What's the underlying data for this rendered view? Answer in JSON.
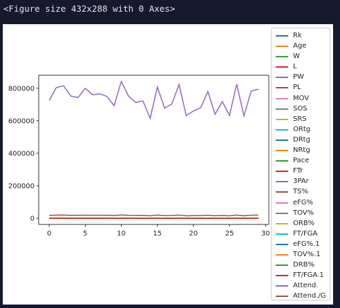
{
  "output": {
    "repr_text": "<Figure size 432x288 with 0 Axes>"
  },
  "colors": {
    "background": "#15192b",
    "canvas": "#ffffff"
  },
  "chart_data": {
    "type": "line",
    "title": "",
    "xlabel": "",
    "ylabel": "",
    "xlim": [
      -1.45,
      30.45
    ],
    "ylim": [
      -38000,
      880000
    ],
    "xticks": [
      0,
      5,
      10,
      15,
      20,
      25,
      30
    ],
    "yticks": [
      0,
      200000,
      400000,
      600000,
      800000
    ],
    "ytick_labels": [
      "0",
      "200000",
      "400000",
      "600000",
      "800000"
    ],
    "xtick_labels": [
      "0",
      "5",
      "10",
      "15",
      "20",
      "25",
      "30"
    ],
    "legend_position": "right-outside",
    "x": [
      0,
      1,
      2,
      3,
      4,
      5,
      6,
      7,
      8,
      9,
      10,
      11,
      12,
      13,
      14,
      15,
      16,
      17,
      18,
      19,
      20,
      21,
      22,
      23,
      24,
      25,
      26,
      27,
      28,
      29
    ],
    "series": [
      {
        "name": "Rk",
        "color": "#1f77b4",
        "values": [
          15,
          15,
          15,
          15,
          15,
          15,
          15,
          15,
          15,
          15,
          15,
          15,
          15,
          15,
          15,
          15,
          15,
          15,
          15,
          15,
          15,
          15,
          15,
          15,
          15,
          15,
          15,
          15,
          15,
          15
        ]
      },
      {
        "name": "Age",
        "color": "#ff7f0e",
        "values": [
          27,
          27,
          27,
          27,
          27,
          27,
          27,
          27,
          27,
          27,
          27,
          27,
          27,
          27,
          27,
          27,
          27,
          27,
          27,
          27,
          27,
          27,
          27,
          27,
          27,
          27,
          27,
          27,
          27,
          27
        ]
      },
      {
        "name": "W",
        "color": "#2ca02c",
        "values": [
          41,
          41,
          41,
          41,
          41,
          41,
          41,
          41,
          41,
          41,
          41,
          41,
          41,
          41,
          41,
          41,
          41,
          41,
          41,
          41,
          41,
          41,
          41,
          41,
          41,
          41,
          41,
          41,
          41,
          41
        ]
      },
      {
        "name": "L",
        "color": "#d62728",
        "values": [
          41,
          41,
          41,
          41,
          41,
          41,
          41,
          41,
          41,
          41,
          41,
          41,
          41,
          41,
          41,
          41,
          41,
          41,
          41,
          41,
          41,
          41,
          41,
          41,
          41,
          41,
          41,
          41,
          41,
          41
        ]
      },
      {
        "name": "PW",
        "color": "#9467bd",
        "values": [
          41,
          41,
          41,
          41,
          41,
          41,
          41,
          41,
          41,
          41,
          41,
          41,
          41,
          41,
          41,
          41,
          41,
          41,
          41,
          41,
          41,
          41,
          41,
          41,
          41,
          41,
          41,
          41,
          41,
          41
        ]
      },
      {
        "name": "PL",
        "color": "#8c564b",
        "values": [
          41,
          41,
          41,
          41,
          41,
          41,
          41,
          41,
          41,
          41,
          41,
          41,
          41,
          41,
          41,
          41,
          41,
          41,
          41,
          41,
          41,
          41,
          41,
          41,
          41,
          41,
          41,
          41,
          41,
          41
        ]
      },
      {
        "name": "MOV",
        "color": "#e377c2",
        "values": [
          0,
          0,
          0,
          0,
          0,
          0,
          0,
          0,
          0,
          0,
          0,
          0,
          0,
          0,
          0,
          0,
          0,
          0,
          0,
          0,
          0,
          0,
          0,
          0,
          0,
          0,
          0,
          0,
          0,
          0
        ]
      },
      {
        "name": "SOS",
        "color": "#7f7f7f",
        "values": [
          0,
          0,
          0,
          0,
          0,
          0,
          0,
          0,
          0,
          0,
          0,
          0,
          0,
          0,
          0,
          0,
          0,
          0,
          0,
          0,
          0,
          0,
          0,
          0,
          0,
          0,
          0,
          0,
          0,
          0
        ]
      },
      {
        "name": "SRS",
        "color": "#bcbd22",
        "values": [
          0,
          0,
          0,
          0,
          0,
          0,
          0,
          0,
          0,
          0,
          0,
          0,
          0,
          0,
          0,
          0,
          0,
          0,
          0,
          0,
          0,
          0,
          0,
          0,
          0,
          0,
          0,
          0,
          0,
          0
        ]
      },
      {
        "name": "ORtg",
        "color": "#17becf",
        "values": [
          110,
          110,
          110,
          110,
          110,
          110,
          110,
          110,
          110,
          110,
          110,
          110,
          110,
          110,
          110,
          110,
          110,
          110,
          110,
          110,
          110,
          110,
          110,
          110,
          110,
          110,
          110,
          110,
          110,
          110
        ]
      },
      {
        "name": "DRtg",
        "color": "#1f77b4",
        "values": [
          110,
          110,
          110,
          110,
          110,
          110,
          110,
          110,
          110,
          110,
          110,
          110,
          110,
          110,
          110,
          110,
          110,
          110,
          110,
          110,
          110,
          110,
          110,
          110,
          110,
          110,
          110,
          110,
          110,
          110
        ]
      },
      {
        "name": "NRtg",
        "color": "#ff7f0e",
        "values": [
          0,
          0,
          0,
          0,
          0,
          0,
          0,
          0,
          0,
          0,
          0,
          0,
          0,
          0,
          0,
          0,
          0,
          0,
          0,
          0,
          0,
          0,
          0,
          0,
          0,
          0,
          0,
          0,
          0,
          0
        ]
      },
      {
        "name": "Pace",
        "color": "#2ca02c",
        "values": [
          100,
          100,
          100,
          100,
          100,
          100,
          100,
          100,
          100,
          100,
          100,
          100,
          100,
          100,
          100,
          100,
          100,
          100,
          100,
          100,
          100,
          100,
          100,
          100,
          100,
          100,
          100,
          100,
          100,
          100
        ]
      },
      {
        "name": "FTr",
        "color": "#d62728",
        "values": [
          0,
          0,
          0,
          0,
          0,
          0,
          0,
          0,
          0,
          0,
          0,
          0,
          0,
          0,
          0,
          0,
          0,
          0,
          0,
          0,
          0,
          0,
          0,
          0,
          0,
          0,
          0,
          0,
          0,
          0
        ]
      },
      {
        "name": "3PAr",
        "color": "#9467bd",
        "values": [
          0,
          0,
          0,
          0,
          0,
          0,
          0,
          0,
          0,
          0,
          0,
          0,
          0,
          0,
          0,
          0,
          0,
          0,
          0,
          0,
          0,
          0,
          0,
          0,
          0,
          0,
          0,
          0,
          0,
          0
        ]
      },
      {
        "name": "TS%",
        "color": "#8c564b",
        "values": [
          1,
          1,
          1,
          1,
          1,
          1,
          1,
          1,
          1,
          1,
          1,
          1,
          1,
          1,
          1,
          1,
          1,
          1,
          1,
          1,
          1,
          1,
          1,
          1,
          1,
          1,
          1,
          1,
          1,
          1
        ]
      },
      {
        "name": "eFG%",
        "color": "#e377c2",
        "values": [
          1,
          1,
          1,
          1,
          1,
          1,
          1,
          1,
          1,
          1,
          1,
          1,
          1,
          1,
          1,
          1,
          1,
          1,
          1,
          1,
          1,
          1,
          1,
          1,
          1,
          1,
          1,
          1,
          1,
          1
        ]
      },
      {
        "name": "TOV%",
        "color": "#7f7f7f",
        "values": [
          13,
          13,
          13,
          13,
          13,
          13,
          13,
          13,
          13,
          13,
          13,
          13,
          13,
          13,
          13,
          13,
          13,
          13,
          13,
          13,
          13,
          13,
          13,
          13,
          13,
          13,
          13,
          13,
          13,
          13
        ]
      },
      {
        "name": "ORB%",
        "color": "#bcbd22",
        "values": [
          22,
          22,
          22,
          22,
          22,
          22,
          22,
          22,
          22,
          22,
          22,
          22,
          22,
          22,
          22,
          22,
          22,
          22,
          22,
          22,
          22,
          22,
          22,
          22,
          22,
          22,
          22,
          22,
          22,
          22
        ]
      },
      {
        "name": "FT/FGA",
        "color": "#17becf",
        "values": [
          0,
          0,
          0,
          0,
          0,
          0,
          0,
          0,
          0,
          0,
          0,
          0,
          0,
          0,
          0,
          0,
          0,
          0,
          0,
          0,
          0,
          0,
          0,
          0,
          0,
          0,
          0,
          0,
          0,
          0
        ]
      },
      {
        "name": "eFG%.1",
        "color": "#1f77b4",
        "values": [
          1,
          1,
          1,
          1,
          1,
          1,
          1,
          1,
          1,
          1,
          1,
          1,
          1,
          1,
          1,
          1,
          1,
          1,
          1,
          1,
          1,
          1,
          1,
          1,
          1,
          1,
          1,
          1,
          1,
          1
        ]
      },
      {
        "name": "TOV%.1",
        "color": "#ff7f0e",
        "values": [
          13,
          13,
          13,
          13,
          13,
          13,
          13,
          13,
          13,
          13,
          13,
          13,
          13,
          13,
          13,
          13,
          13,
          13,
          13,
          13,
          13,
          13,
          13,
          13,
          13,
          13,
          13,
          13,
          13,
          13
        ]
      },
      {
        "name": "DRB%",
        "color": "#2ca02c",
        "values": [
          78,
          78,
          78,
          78,
          78,
          78,
          78,
          78,
          78,
          78,
          78,
          78,
          78,
          78,
          78,
          78,
          78,
          78,
          78,
          78,
          78,
          78,
          78,
          78,
          78,
          78,
          78,
          78,
          78,
          78
        ]
      },
      {
        "name": "FT/FGA.1",
        "color": "#d62728",
        "values": [
          0,
          0,
          0,
          0,
          0,
          0,
          0,
          0,
          0,
          0,
          0,
          0,
          0,
          0,
          0,
          0,
          0,
          0,
          0,
          0,
          0,
          0,
          0,
          0,
          0,
          0,
          0,
          0,
          0,
          0
        ]
      },
      {
        "name": "Attend.",
        "color": "#9467bd",
        "values": [
          725000,
          805000,
          815000,
          752000,
          743000,
          800000,
          760000,
          766000,
          750000,
          693000,
          842000,
          752000,
          712000,
          722000,
          615000,
          808000,
          678000,
          703000,
          823000,
          632000,
          660000,
          680000,
          780000,
          640000,
          718000,
          633000,
          825000,
          630000,
          782000,
          795000
        ]
      },
      {
        "name": "Attend./G",
        "color": "#8c564b",
        "values": [
          17700,
          19600,
          19900,
          18300,
          18100,
          19500,
          18500,
          18700,
          18300,
          16900,
          20500,
          18300,
          17400,
          17600,
          15000,
          19700,
          16500,
          17100,
          20100,
          15400,
          16100,
          16600,
          19000,
          15600,
          17500,
          15400,
          20100,
          15400,
          19100,
          19400
        ]
      }
    ]
  }
}
